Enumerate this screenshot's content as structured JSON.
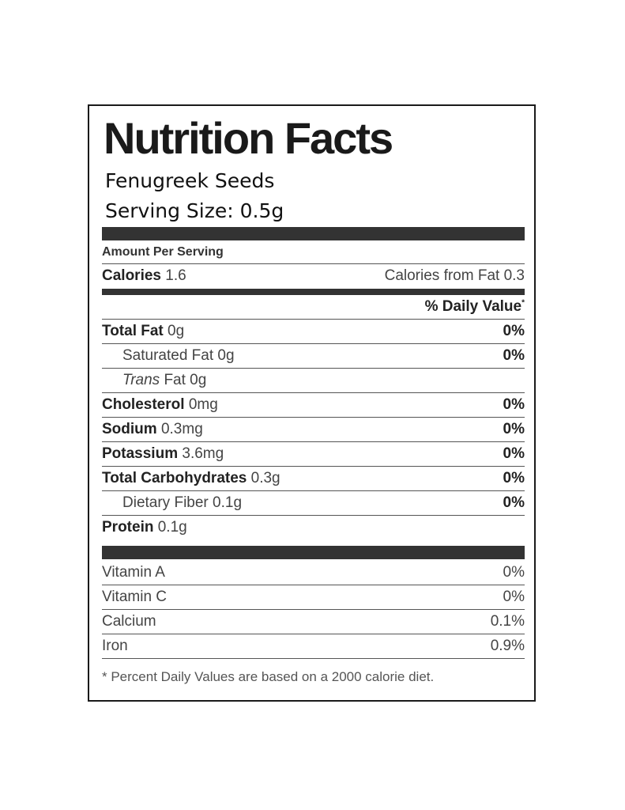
{
  "title": "Nutrition Facts",
  "product_name": "Fenugreek Seeds",
  "serving_size": "Serving Size: 0.5g",
  "amount_per_serving": "Amount Per Serving",
  "calories": {
    "label": "Calories",
    "value": "1.6",
    "from_fat": "Calories from Fat 0.3"
  },
  "daily_value_header": "% Daily Value",
  "daily_value_mark": "*",
  "nutrients": [
    {
      "label": "Total Fat",
      "value": "0g",
      "pct": "0%"
    },
    {
      "label": "Saturated Fat 0g",
      "pct": "0%"
    },
    {
      "label_italic": "Trans",
      "label_rest": " Fat 0g"
    },
    {
      "label": "Cholesterol",
      "value": "0mg",
      "pct": "0%"
    },
    {
      "label": "Sodium",
      "value": "0.3mg",
      "pct": "0%"
    },
    {
      "label": "Potassium",
      "value": "3.6mg",
      "pct": "0%"
    },
    {
      "label": "Total Carbohydrates",
      "value": "0.3g",
      "pct": "0%"
    },
    {
      "label": "Dietary Fiber 0.1g",
      "pct": "0%"
    },
    {
      "label": "Protein",
      "value": "0.1g"
    }
  ],
  "vitamins": [
    {
      "label": "Vitamin A",
      "pct": "0%"
    },
    {
      "label": "Vitamin C",
      "pct": "0%"
    },
    {
      "label": "Calcium",
      "pct": "0.1%"
    },
    {
      "label": "Iron",
      "pct": "0.9%"
    }
  ],
  "footnote": "* Percent Daily Values are based on a 2000 calorie diet."
}
